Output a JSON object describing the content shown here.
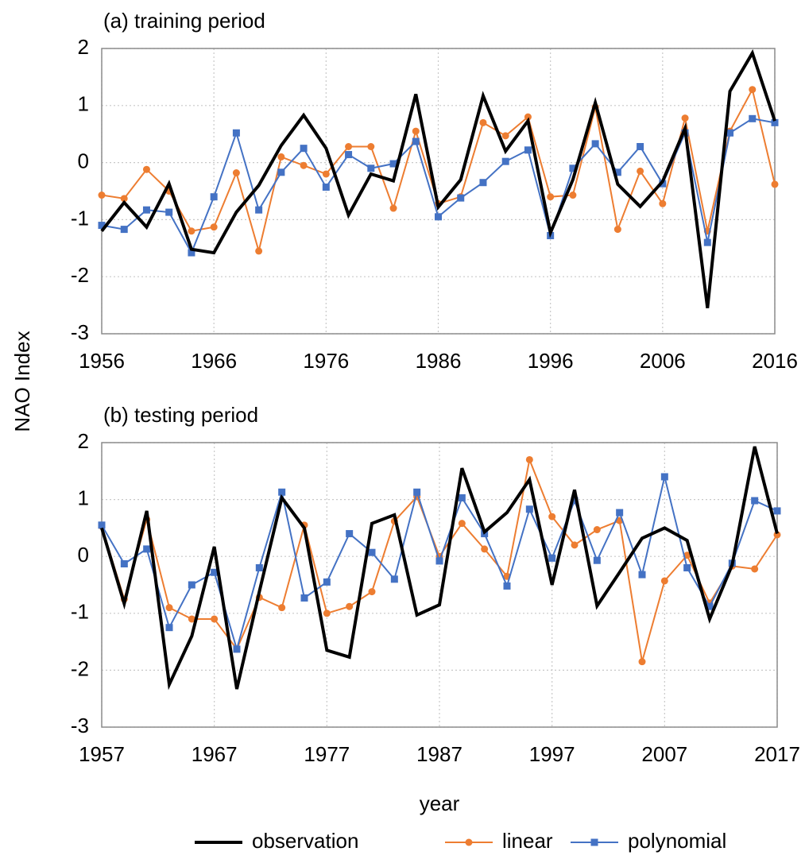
{
  "ylabel": "NAO Index",
  "xlabel": "year",
  "chart_data": [
    {
      "type": "line",
      "title": "(a) training period",
      "x": [
        1956,
        1958,
        1960,
        1962,
        1964,
        1966,
        1968,
        1970,
        1972,
        1974,
        1976,
        1978,
        1980,
        1982,
        1984,
        1986,
        1988,
        1990,
        1992,
        1994,
        1996,
        1998,
        2000,
        2002,
        2004,
        2006,
        2008,
        2010,
        2012,
        2014,
        2016
      ],
      "xlim": [
        1956,
        2016
      ],
      "xticks": [
        1956,
        1966,
        1976,
        1986,
        1996,
        2006,
        2016
      ],
      "ylim": [
        -3,
        2
      ],
      "yticks": [
        -3,
        -2,
        -1,
        0,
        1,
        2
      ],
      "grid": true,
      "series": [
        {
          "name": "observation",
          "color": "#000000",
          "marker": "none",
          "values": [
            -1.2,
            -0.7,
            -1.13,
            -0.37,
            -1.52,
            -1.58,
            -0.87,
            -0.4,
            0.3,
            0.83,
            0.25,
            -0.92,
            -0.2,
            -0.32,
            1.2,
            -0.78,
            -0.3,
            1.17,
            0.2,
            0.73,
            -1.23,
            -0.3,
            1.05,
            -0.38,
            -0.77,
            -0.33,
            0.6,
            -2.55,
            1.25,
            1.92,
            0.73
          ]
        },
        {
          "name": "linear",
          "color": "#ed7d31",
          "marker": "circle",
          "values": [
            -0.57,
            -0.63,
            -0.12,
            -0.5,
            -1.2,
            -1.13,
            -0.18,
            -1.55,
            0.1,
            -0.05,
            -0.2,
            0.28,
            0.28,
            -0.8,
            0.55,
            -0.72,
            -0.6,
            0.7,
            0.47,
            0.8,
            -0.6,
            -0.57,
            0.97,
            -1.17,
            -0.15,
            -0.72,
            0.78,
            -1.2,
            0.55,
            1.28,
            -0.38
          ]
        },
        {
          "name": "polynomial",
          "color": "#4472c4",
          "marker": "square",
          "values": [
            -1.1,
            -1.17,
            -0.83,
            -0.87,
            -1.58,
            -0.6,
            0.52,
            -0.83,
            -0.17,
            0.25,
            -0.43,
            0.14,
            -0.1,
            -0.02,
            0.37,
            -0.95,
            -0.62,
            -0.35,
            0.02,
            0.22,
            -1.28,
            -0.1,
            0.33,
            -0.17,
            0.28,
            -0.37,
            0.52,
            -1.4,
            0.52,
            0.77,
            0.7
          ]
        }
      ]
    },
    {
      "type": "line",
      "title": "(b) testing period",
      "x": [
        1957,
        1959,
        1961,
        1963,
        1965,
        1967,
        1969,
        1971,
        1973,
        1975,
        1977,
        1979,
        1981,
        1983,
        1985,
        1987,
        1989,
        1991,
        1993,
        1995,
        1997,
        1999,
        2001,
        2003,
        2005,
        2007,
        2009,
        2011,
        2013,
        2015,
        2017
      ],
      "xlim": [
        1957,
        2017
      ],
      "xticks": [
        1957,
        1967,
        1977,
        1987,
        1997,
        2007,
        2017
      ],
      "ylim": [
        -3,
        2
      ],
      "yticks": [
        -3,
        -2,
        -1,
        0,
        1,
        2
      ],
      "grid": true,
      "series": [
        {
          "name": "observation",
          "color": "#000000",
          "marker": "none",
          "values": [
            0.5,
            -0.83,
            0.8,
            -2.25,
            -1.4,
            0.17,
            -2.33,
            -0.62,
            1.03,
            0.5,
            -1.65,
            -1.77,
            0.58,
            0.73,
            -1.03,
            -0.85,
            1.55,
            0.43,
            0.77,
            1.35,
            -0.5,
            1.17,
            -0.87,
            -0.28,
            0.32,
            0.5,
            0.28,
            -1.1,
            -0.15,
            1.93,
            0.4
          ]
        },
        {
          "name": "linear",
          "color": "#ed7d31",
          "marker": "circle",
          "values": [
            0.53,
            -0.75,
            0.65,
            -0.9,
            -1.1,
            -1.1,
            -1.63,
            -0.72,
            -0.9,
            0.55,
            -1.0,
            -0.88,
            -0.62,
            0.62,
            1.05,
            0.0,
            0.58,
            0.13,
            -0.35,
            1.7,
            0.7,
            0.2,
            0.47,
            0.63,
            -1.85,
            -0.43,
            0.02,
            -0.82,
            -0.17,
            -0.22,
            0.38
          ]
        },
        {
          "name": "polynomial",
          "color": "#4472c4",
          "marker": "square",
          "values": [
            0.55,
            -0.13,
            0.13,
            -1.25,
            -0.5,
            -0.28,
            -1.63,
            -0.2,
            1.13,
            -0.73,
            -0.45,
            0.4,
            0.07,
            -0.4,
            1.13,
            -0.08,
            1.03,
            0.4,
            -0.52,
            0.83,
            -0.03,
            0.98,
            -0.07,
            0.77,
            -0.32,
            1.4,
            -0.2,
            -0.88,
            -0.12,
            0.98,
            0.8
          ]
        }
      ]
    }
  ]
}
